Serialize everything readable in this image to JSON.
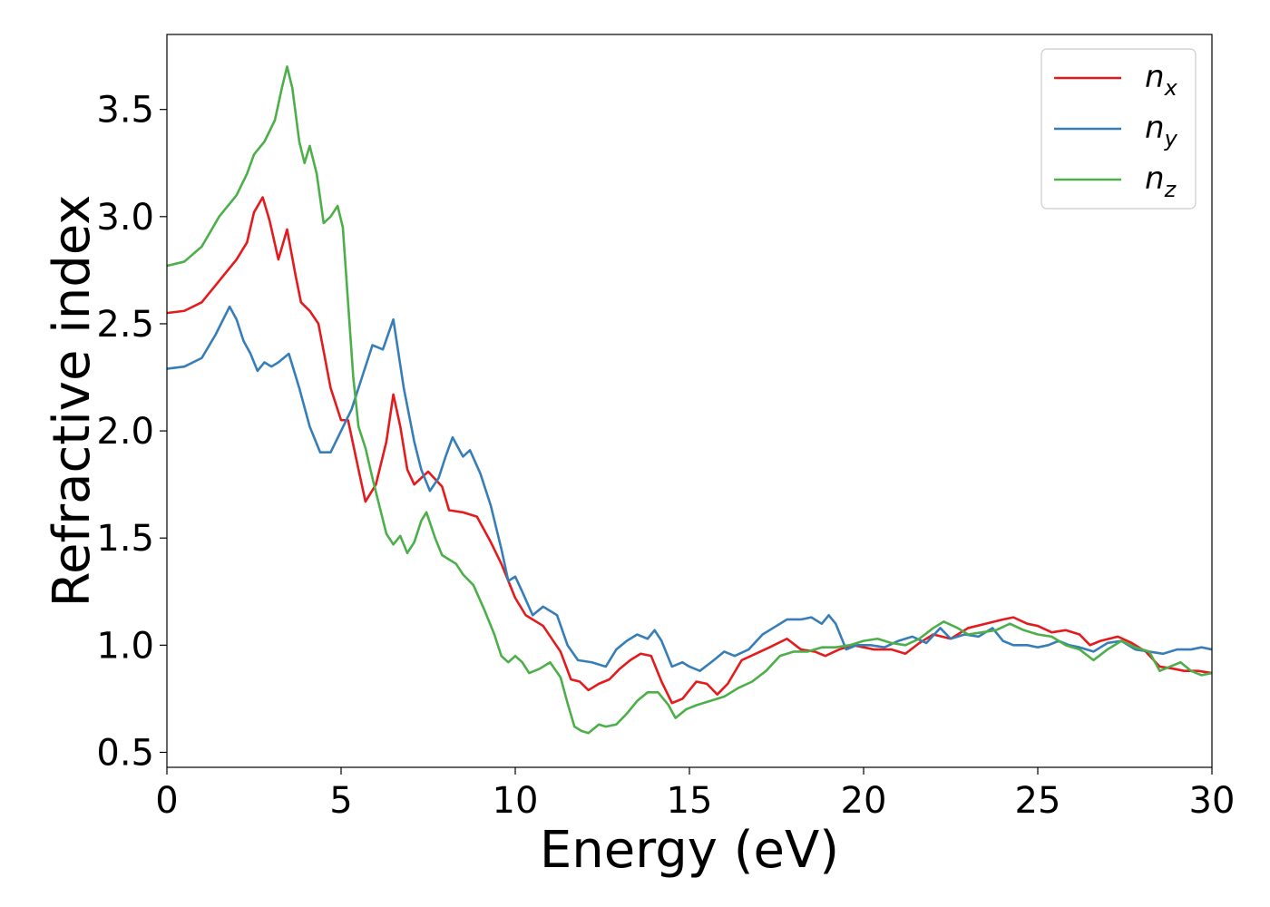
{
  "chart_data": {
    "type": "line",
    "title": "",
    "xlabel": "Energy (eV)",
    "ylabel": "Refractive index",
    "xlim": [
      0,
      30
    ],
    "ylim": [
      0.43,
      3.85
    ],
    "xticks": [
      0,
      5,
      10,
      15,
      20,
      25,
      30
    ],
    "yticks": [
      0.5,
      1.0,
      1.5,
      2.0,
      2.5,
      3.0,
      3.5
    ],
    "xtick_labels": [
      "0",
      "5",
      "10",
      "15",
      "20",
      "25",
      "30"
    ],
    "ytick_labels": [
      "0.5",
      "1.0",
      "1.5",
      "2.0",
      "2.5",
      "3.0",
      "3.5"
    ],
    "grid": false,
    "legend_position": "top-right",
    "series": [
      {
        "name": "n_x",
        "legend_base": "n",
        "legend_sub": "x",
        "color": "#e41a1c",
        "points": [
          [
            0,
            2.55
          ],
          [
            0.5,
            2.56
          ],
          [
            1.0,
            2.6
          ],
          [
            1.5,
            2.7
          ],
          [
            2.0,
            2.8
          ],
          [
            2.3,
            2.88
          ],
          [
            2.5,
            3.02
          ],
          [
            2.75,
            3.09
          ],
          [
            2.95,
            2.98
          ],
          [
            3.2,
            2.8
          ],
          [
            3.45,
            2.94
          ],
          [
            3.7,
            2.72
          ],
          [
            3.85,
            2.6
          ],
          [
            4.1,
            2.56
          ],
          [
            4.35,
            2.5
          ],
          [
            4.7,
            2.2
          ],
          [
            5.0,
            2.05
          ],
          [
            5.2,
            2.05
          ],
          [
            5.5,
            1.82
          ],
          [
            5.7,
            1.67
          ],
          [
            6.0,
            1.75
          ],
          [
            6.3,
            1.95
          ],
          [
            6.5,
            2.17
          ],
          [
            6.7,
            2.02
          ],
          [
            6.9,
            1.82
          ],
          [
            7.1,
            1.75
          ],
          [
            7.5,
            1.81
          ],
          [
            7.9,
            1.74
          ],
          [
            8.1,
            1.63
          ],
          [
            8.5,
            1.62
          ],
          [
            8.9,
            1.6
          ],
          [
            9.3,
            1.48
          ],
          [
            9.6,
            1.38
          ],
          [
            10.0,
            1.22
          ],
          [
            10.3,
            1.14
          ],
          [
            10.8,
            1.09
          ],
          [
            11.3,
            0.97
          ],
          [
            11.6,
            0.84
          ],
          [
            11.85,
            0.83
          ],
          [
            12.1,
            0.79
          ],
          [
            12.4,
            0.82
          ],
          [
            12.7,
            0.84
          ],
          [
            13.0,
            0.89
          ],
          [
            13.3,
            0.93
          ],
          [
            13.6,
            0.96
          ],
          [
            13.9,
            0.95
          ],
          [
            14.2,
            0.83
          ],
          [
            14.5,
            0.73
          ],
          [
            14.8,
            0.75
          ],
          [
            15.2,
            0.83
          ],
          [
            15.5,
            0.82
          ],
          [
            15.8,
            0.77
          ],
          [
            16.1,
            0.82
          ],
          [
            16.5,
            0.93
          ],
          [
            16.9,
            0.96
          ],
          [
            17.3,
            0.99
          ],
          [
            17.8,
            1.03
          ],
          [
            18.2,
            0.98
          ],
          [
            18.6,
            0.97
          ],
          [
            18.9,
            0.95
          ],
          [
            19.3,
            0.98
          ],
          [
            19.7,
            1.0
          ],
          [
            20.0,
            0.99
          ],
          [
            20.3,
            0.98
          ],
          [
            20.8,
            0.98
          ],
          [
            21.2,
            0.96
          ],
          [
            21.6,
            1.01
          ],
          [
            22.0,
            1.05
          ],
          [
            22.5,
            1.03
          ],
          [
            23.0,
            1.08
          ],
          [
            23.5,
            1.1
          ],
          [
            24.0,
            1.12
          ],
          [
            24.3,
            1.13
          ],
          [
            24.7,
            1.1
          ],
          [
            25.0,
            1.09
          ],
          [
            25.4,
            1.06
          ],
          [
            25.8,
            1.07
          ],
          [
            26.2,
            1.05
          ],
          [
            26.5,
            1.0
          ],
          [
            26.8,
            1.02
          ],
          [
            27.3,
            1.04
          ],
          [
            27.7,
            1.01
          ],
          [
            28.1,
            0.97
          ],
          [
            28.5,
            0.9
          ],
          [
            28.9,
            0.89
          ],
          [
            29.2,
            0.88
          ],
          [
            29.6,
            0.88
          ],
          [
            30.0,
            0.87
          ]
        ]
      },
      {
        "name": "n_y",
        "legend_base": "n",
        "legend_sub": "y",
        "color": "#377eb8",
        "points": [
          [
            0,
            2.29
          ],
          [
            0.5,
            2.3
          ],
          [
            1.0,
            2.34
          ],
          [
            1.4,
            2.45
          ],
          [
            1.8,
            2.58
          ],
          [
            2.0,
            2.52
          ],
          [
            2.2,
            2.42
          ],
          [
            2.4,
            2.36
          ],
          [
            2.6,
            2.28
          ],
          [
            2.8,
            2.32
          ],
          [
            3.0,
            2.3
          ],
          [
            3.2,
            2.32
          ],
          [
            3.5,
            2.36
          ],
          [
            3.8,
            2.2
          ],
          [
            4.1,
            2.02
          ],
          [
            4.4,
            1.9
          ],
          [
            4.7,
            1.9
          ],
          [
            5.0,
            2.0
          ],
          [
            5.3,
            2.1
          ],
          [
            5.6,
            2.25
          ],
          [
            5.9,
            2.4
          ],
          [
            6.2,
            2.38
          ],
          [
            6.5,
            2.52
          ],
          [
            6.8,
            2.2
          ],
          [
            7.1,
            1.95
          ],
          [
            7.3,
            1.82
          ],
          [
            7.55,
            1.72
          ],
          [
            7.8,
            1.78
          ],
          [
            8.0,
            1.88
          ],
          [
            8.2,
            1.97
          ],
          [
            8.5,
            1.88
          ],
          [
            8.7,
            1.91
          ],
          [
            9.0,
            1.8
          ],
          [
            9.3,
            1.65
          ],
          [
            9.6,
            1.45
          ],
          [
            9.8,
            1.3
          ],
          [
            10.0,
            1.32
          ],
          [
            10.2,
            1.25
          ],
          [
            10.5,
            1.14
          ],
          [
            10.8,
            1.18
          ],
          [
            11.2,
            1.14
          ],
          [
            11.5,
            1.0
          ],
          [
            11.8,
            0.93
          ],
          [
            12.2,
            0.92
          ],
          [
            12.6,
            0.9
          ],
          [
            12.9,
            0.98
          ],
          [
            13.2,
            1.02
          ],
          [
            13.5,
            1.05
          ],
          [
            13.8,
            1.03
          ],
          [
            14.0,
            1.07
          ],
          [
            14.2,
            1.02
          ],
          [
            14.5,
            0.9
          ],
          [
            14.8,
            0.92
          ],
          [
            15.0,
            0.9
          ],
          [
            15.3,
            0.88
          ],
          [
            15.7,
            0.93
          ],
          [
            16.0,
            0.97
          ],
          [
            16.3,
            0.95
          ],
          [
            16.7,
            0.98
          ],
          [
            17.1,
            1.05
          ],
          [
            17.4,
            1.08
          ],
          [
            17.8,
            1.12
          ],
          [
            18.2,
            1.12
          ],
          [
            18.5,
            1.13
          ],
          [
            18.8,
            1.1
          ],
          [
            19.0,
            1.14
          ],
          [
            19.2,
            1.1
          ],
          [
            19.5,
            0.98
          ],
          [
            19.8,
            1.0
          ],
          [
            20.2,
            1.0
          ],
          [
            20.6,
            0.99
          ],
          [
            21.0,
            1.02
          ],
          [
            21.4,
            1.04
          ],
          [
            21.8,
            1.01
          ],
          [
            22.2,
            1.08
          ],
          [
            22.5,
            1.03
          ],
          [
            22.9,
            1.05
          ],
          [
            23.3,
            1.04
          ],
          [
            23.7,
            1.08
          ],
          [
            24.0,
            1.02
          ],
          [
            24.3,
            1.0
          ],
          [
            24.7,
            1.0
          ],
          [
            25.0,
            0.99
          ],
          [
            25.3,
            1.0
          ],
          [
            25.6,
            1.02
          ],
          [
            25.9,
            1.0
          ],
          [
            26.2,
            0.99
          ],
          [
            26.6,
            0.97
          ],
          [
            27.0,
            1.01
          ],
          [
            27.4,
            1.02
          ],
          [
            27.8,
            0.98
          ],
          [
            28.2,
            0.97
          ],
          [
            28.6,
            0.96
          ],
          [
            29.0,
            0.98
          ],
          [
            29.4,
            0.98
          ],
          [
            29.7,
            0.99
          ],
          [
            30.0,
            0.98
          ]
        ]
      },
      {
        "name": "n_z",
        "legend_base": "n",
        "legend_sub": "z",
        "color": "#4daf4a",
        "points": [
          [
            0,
            2.77
          ],
          [
            0.5,
            2.79
          ],
          [
            1.0,
            2.86
          ],
          [
            1.5,
            3.0
          ],
          [
            2.0,
            3.1
          ],
          [
            2.3,
            3.2
          ],
          [
            2.5,
            3.29
          ],
          [
            2.8,
            3.35
          ],
          [
            3.1,
            3.45
          ],
          [
            3.3,
            3.6
          ],
          [
            3.45,
            3.7
          ],
          [
            3.6,
            3.6
          ],
          [
            3.8,
            3.35
          ],
          [
            3.95,
            3.25
          ],
          [
            4.1,
            3.33
          ],
          [
            4.3,
            3.2
          ],
          [
            4.5,
            2.97
          ],
          [
            4.7,
            3.0
          ],
          [
            4.9,
            3.05
          ],
          [
            5.05,
            2.95
          ],
          [
            5.2,
            2.6
          ],
          [
            5.35,
            2.25
          ],
          [
            5.5,
            2.02
          ],
          [
            5.7,
            1.92
          ],
          [
            5.9,
            1.78
          ],
          [
            6.1,
            1.65
          ],
          [
            6.3,
            1.52
          ],
          [
            6.5,
            1.47
          ],
          [
            6.7,
            1.51
          ],
          [
            6.9,
            1.43
          ],
          [
            7.1,
            1.48
          ],
          [
            7.3,
            1.58
          ],
          [
            7.45,
            1.62
          ],
          [
            7.7,
            1.5
          ],
          [
            7.9,
            1.42
          ],
          [
            8.1,
            1.4
          ],
          [
            8.3,
            1.38
          ],
          [
            8.5,
            1.33
          ],
          [
            8.8,
            1.28
          ],
          [
            9.1,
            1.17
          ],
          [
            9.4,
            1.05
          ],
          [
            9.6,
            0.95
          ],
          [
            9.8,
            0.92
          ],
          [
            10.0,
            0.95
          ],
          [
            10.2,
            0.92
          ],
          [
            10.4,
            0.87
          ],
          [
            10.7,
            0.89
          ],
          [
            11.0,
            0.92
          ],
          [
            11.3,
            0.85
          ],
          [
            11.5,
            0.73
          ],
          [
            11.7,
            0.62
          ],
          [
            11.9,
            0.6
          ],
          [
            12.1,
            0.59
          ],
          [
            12.4,
            0.63
          ],
          [
            12.6,
            0.62
          ],
          [
            12.9,
            0.63
          ],
          [
            13.2,
            0.68
          ],
          [
            13.5,
            0.74
          ],
          [
            13.8,
            0.78
          ],
          [
            14.1,
            0.78
          ],
          [
            14.4,
            0.72
          ],
          [
            14.6,
            0.66
          ],
          [
            14.9,
            0.7
          ],
          [
            15.2,
            0.72
          ],
          [
            15.6,
            0.74
          ],
          [
            16.0,
            0.76
          ],
          [
            16.4,
            0.8
          ],
          [
            16.8,
            0.83
          ],
          [
            17.2,
            0.88
          ],
          [
            17.6,
            0.95
          ],
          [
            18.0,
            0.97
          ],
          [
            18.4,
            0.97
          ],
          [
            18.8,
            0.99
          ],
          [
            19.2,
            0.99
          ],
          [
            19.6,
            1.0
          ],
          [
            20.0,
            1.02
          ],
          [
            20.4,
            1.03
          ],
          [
            20.8,
            1.01
          ],
          [
            21.2,
            1.0
          ],
          [
            21.6,
            1.03
          ],
          [
            22.0,
            1.08
          ],
          [
            22.3,
            1.11
          ],
          [
            22.7,
            1.08
          ],
          [
            23.0,
            1.05
          ],
          [
            23.4,
            1.06
          ],
          [
            23.8,
            1.07
          ],
          [
            24.2,
            1.1
          ],
          [
            24.6,
            1.07
          ],
          [
            25.0,
            1.05
          ],
          [
            25.4,
            1.04
          ],
          [
            25.8,
            1.0
          ],
          [
            26.2,
            0.98
          ],
          [
            26.6,
            0.93
          ],
          [
            27.0,
            0.98
          ],
          [
            27.4,
            1.02
          ],
          [
            27.8,
            0.99
          ],
          [
            28.2,
            0.97
          ],
          [
            28.5,
            0.88
          ],
          [
            28.8,
            0.9
          ],
          [
            29.1,
            0.92
          ],
          [
            29.4,
            0.88
          ],
          [
            29.7,
            0.86
          ],
          [
            30.0,
            0.87
          ]
        ]
      }
    ]
  }
}
